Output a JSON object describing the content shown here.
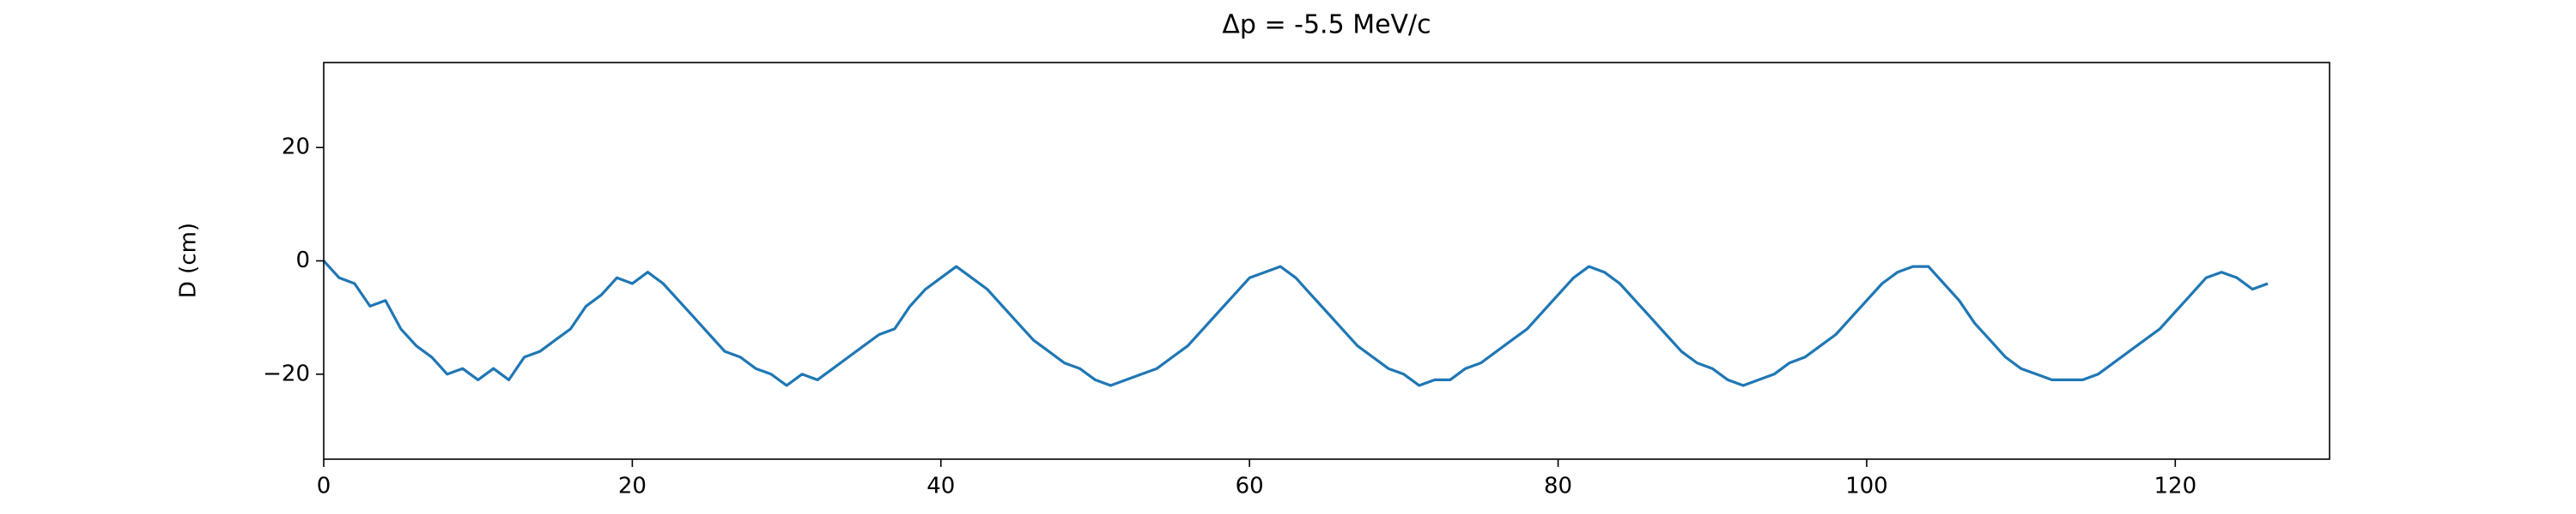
{
  "chart_data": {
    "type": "line",
    "title": "Δp = -5.5 MeV/c",
    "y_label": "D (cm)",
    "x": [
      0,
      1,
      2,
      3,
      4,
      5,
      6,
      7,
      8,
      9,
      10,
      11,
      12,
      13,
      14,
      15,
      16,
      17,
      18,
      19,
      20,
      21,
      22,
      23,
      24,
      25,
      26,
      27,
      28,
      29,
      30,
      31,
      32,
      33,
      34,
      35,
      36,
      37,
      38,
      39,
      40,
      41,
      42,
      43,
      44,
      45,
      46,
      47,
      48,
      49,
      50,
      51,
      52,
      53,
      54,
      55,
      56,
      57,
      58,
      59,
      60,
      61,
      62,
      63,
      64,
      65,
      66,
      67,
      68,
      69,
      70,
      71,
      72,
      73,
      74,
      75,
      76,
      77,
      78,
      79,
      80,
      81,
      82,
      83,
      84,
      85,
      86,
      87,
      88,
      89,
      90,
      91,
      92,
      93,
      94,
      95,
      96,
      97,
      98,
      99,
      100,
      101,
      102,
      103,
      104,
      105,
      106,
      107,
      108,
      109,
      110,
      111,
      112,
      113,
      114,
      115,
      116,
      117,
      118,
      119,
      120,
      121,
      122,
      123,
      124,
      125,
      126
    ],
    "series": [
      {
        "name": "D",
        "color": "#1f77b4",
        "values": [
          0,
          -3,
          -4,
          -8,
          -7,
          -12,
          -15,
          -17,
          -20,
          -19,
          -21,
          -19,
          -21,
          -17,
          -16,
          -14,
          -12,
          -8,
          -6,
          -3,
          -4,
          -2,
          -4,
          -7,
          -10,
          -13,
          -16,
          -17,
          -19,
          -20,
          -22,
          -20,
          -21,
          -19,
          -17,
          -15,
          -13,
          -12,
          -8,
          -5,
          -3,
          -1,
          -3,
          -5,
          -8,
          -11,
          -14,
          -16,
          -18,
          -19,
          -21,
          -22,
          -21,
          -20,
          -19,
          -17,
          -15,
          -12,
          -9,
          -6,
          -3,
          -2,
          -1,
          -3,
          -6,
          -9,
          -12,
          -15,
          -17,
          -19,
          -20,
          -22,
          -21,
          -21,
          -19,
          -18,
          -16,
          -14,
          -12,
          -9,
          -6,
          -3,
          -1,
          -2,
          -4,
          -7,
          -10,
          -13,
          -16,
          -18,
          -19,
          -21,
          -22,
          -21,
          -20,
          -18,
          -17,
          -15,
          -13,
          -10,
          -7,
          -4,
          -2,
          -1,
          -1,
          -4,
          -7,
          -11,
          -14,
          -17,
          -19,
          -20,
          -21,
          -21,
          -21,
          -20,
          -18,
          -16,
          -14,
          -12,
          -9,
          -6,
          -3,
          -2,
          -3,
          -5,
          -4
        ]
      }
    ],
    "xlim": [
      0,
      130
    ],
    "ylim": [
      -35,
      35
    ],
    "xticks": [
      0,
      20,
      40,
      60,
      80,
      100,
      120
    ],
    "yticks": [
      {
        "value": -20,
        "label": "−20"
      },
      0,
      20
    ]
  }
}
